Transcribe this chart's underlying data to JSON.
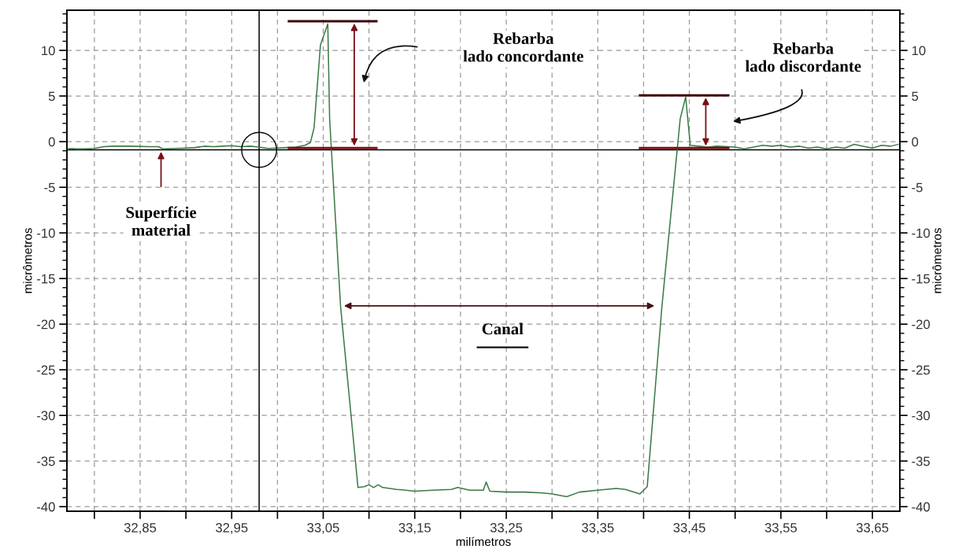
{
  "chart_data": {
    "type": "line",
    "xlabel": "milímetros",
    "ylabel": "micrômetros",
    "y2label": "micrômetros",
    "annotations": [
      "Rebarba\nlado concordante",
      "Rebarba\nlado discordante",
      "Superfície\nmaterial",
      "Canal"
    ],
    "series": [
      {
        "color": "#3d7a45",
        "x": [
          32.772,
          32.78,
          32.79,
          32.8,
          32.81,
          32.82,
          32.84,
          32.86,
          32.87,
          32.875,
          32.89,
          32.9,
          32.91,
          32.92,
          32.93,
          32.94,
          32.95,
          32.96,
          32.97,
          32.98,
          32.99,
          33.0,
          33.01,
          33.02,
          33.03,
          33.036,
          33.04,
          33.047,
          33.055,
          33.057,
          33.069,
          33.088,
          33.095,
          33.1,
          33.105,
          33.11,
          33.115,
          33.13,
          33.15,
          33.17,
          33.19,
          33.197,
          33.21,
          33.225,
          33.228,
          33.232,
          33.25,
          33.27,
          33.29,
          33.3,
          33.316,
          33.33,
          33.35,
          33.37,
          33.38,
          33.396,
          33.404,
          33.42,
          33.44,
          33.446,
          33.451,
          33.46,
          33.47,
          33.48,
          33.5,
          33.51,
          33.52,
          33.53,
          33.54,
          33.55,
          33.56,
          33.57,
          33.58,
          33.59,
          33.6,
          33.61,
          33.62,
          33.63,
          33.64,
          33.65,
          33.66,
          33.67,
          33.678
        ],
        "values": [
          -0.75,
          -0.8,
          -0.8,
          -0.75,
          -0.55,
          -0.5,
          -0.5,
          -0.55,
          -0.55,
          -0.8,
          -0.75,
          -0.7,
          -0.65,
          -0.5,
          -0.55,
          -0.5,
          -0.45,
          -0.55,
          -0.5,
          -0.6,
          -0.75,
          -0.7,
          -0.65,
          -0.6,
          -0.4,
          -0.1,
          1.5,
          10.6,
          12.9,
          2.5,
          -18.1,
          -37.9,
          -37.8,
          -37.6,
          -37.9,
          -37.6,
          -37.9,
          -38.1,
          -38.3,
          -38.2,
          -38.1,
          -37.9,
          -38.2,
          -38.2,
          -37.3,
          -38.3,
          -38.4,
          -38.4,
          -38.5,
          -38.6,
          -38.9,
          -38.4,
          -38.2,
          -38.0,
          -38.1,
          -38.6,
          -37.8,
          -18.1,
          2.5,
          4.9,
          -0.4,
          -0.5,
          -0.6,
          -0.5,
          -0.6,
          -0.8,
          -0.6,
          -0.4,
          -0.5,
          -0.4,
          -0.6,
          -0.5,
          -0.7,
          -0.6,
          -0.8,
          -0.6,
          -0.7,
          -0.3,
          -0.5,
          -0.7,
          -0.4,
          -0.5,
          -0.3
        ]
      }
    ],
    "xlim": [
      32.77,
      33.68
    ],
    "xticks": [
      {
        "value": 32.8,
        "label": null
      },
      {
        "value": 32.85,
        "label": "32,85"
      },
      {
        "value": 32.9,
        "label": null
      },
      {
        "value": 32.95,
        "label": "32,95"
      },
      {
        "value": 33.0,
        "label": null
      },
      {
        "value": 33.05,
        "label": "33,05"
      },
      {
        "value": 33.1,
        "label": null
      },
      {
        "value": 33.15,
        "label": "33,15"
      },
      {
        "value": 33.2,
        "label": null
      },
      {
        "value": 33.25,
        "label": "33,25"
      },
      {
        "value": 33.3,
        "label": null
      },
      {
        "value": 33.35,
        "label": "33,35"
      },
      {
        "value": 33.4,
        "label": null
      },
      {
        "value": 33.45,
        "label": "33,45"
      },
      {
        "value": 33.5,
        "label": null
      },
      {
        "value": 33.55,
        "label": "33,55"
      },
      {
        "value": 33.6,
        "label": null
      },
      {
        "value": 33.65,
        "label": "33,65"
      }
    ],
    "ylim": [
      -40.5,
      14.4
    ],
    "yticks": [
      -40,
      -35,
      -30,
      -25,
      -20,
      -15,
      -10,
      -5,
      0,
      5,
      10
    ],
    "y2lim": [
      -40.5,
      14.4
    ],
    "y2ticks": [
      -40,
      -35,
      -30,
      -25,
      -20,
      -15,
      -10,
      -5,
      0,
      5,
      10
    ],
    "ref_lines": [
      {
        "axis": "x",
        "value": 32.98,
        "color": "#000000"
      },
      {
        "axis": "y",
        "value": -0.9,
        "color": "#000000"
      }
    ],
    "grid": true,
    "marker": "none",
    "line_style": "solid"
  }
}
